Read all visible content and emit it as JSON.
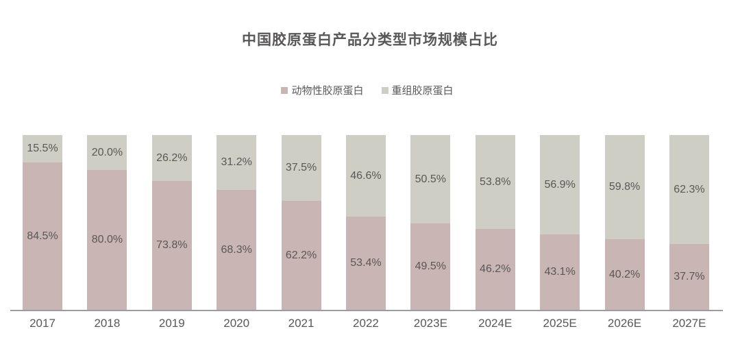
{
  "title": "中国胶原蛋白产品分类型市场规模占比",
  "legend": [
    {
      "label": "动物性胶原蛋白",
      "color": "#c9b5b3"
    },
    {
      "label": "重组胶原蛋白",
      "color": "#cfcec4"
    }
  ],
  "chart_data": {
    "type": "bar",
    "stacked": true,
    "percent_stacked": true,
    "title": "中国胶原蛋白产品分类型市场规模占比",
    "categories": [
      "2017",
      "2018",
      "2019",
      "2020",
      "2021",
      "2022",
      "2023E",
      "2024E",
      "2025E",
      "2026E",
      "2027E"
    ],
    "series": [
      {
        "name": "动物性胶原蛋白",
        "color": "#c9b5b3",
        "position": "bottom",
        "values": [
          84.5,
          80.0,
          73.8,
          68.3,
          62.2,
          53.4,
          49.5,
          46.2,
          43.1,
          40.2,
          37.7
        ]
      },
      {
        "name": "重组胶原蛋白",
        "color": "#cfcec4",
        "position": "top",
        "values": [
          15.5,
          20.0,
          26.2,
          31.2,
          37.5,
          46.6,
          50.5,
          53.8,
          56.9,
          59.8,
          62.3
        ]
      }
    ],
    "unit": "%",
    "ylim": [
      0,
      100
    ],
    "grid": false,
    "legend_position": "top-center",
    "value_labels": "inside-segment-center",
    "axis_line_color": "#9b9ba3",
    "text_color": "#595757",
    "background": "#ffffff"
  }
}
